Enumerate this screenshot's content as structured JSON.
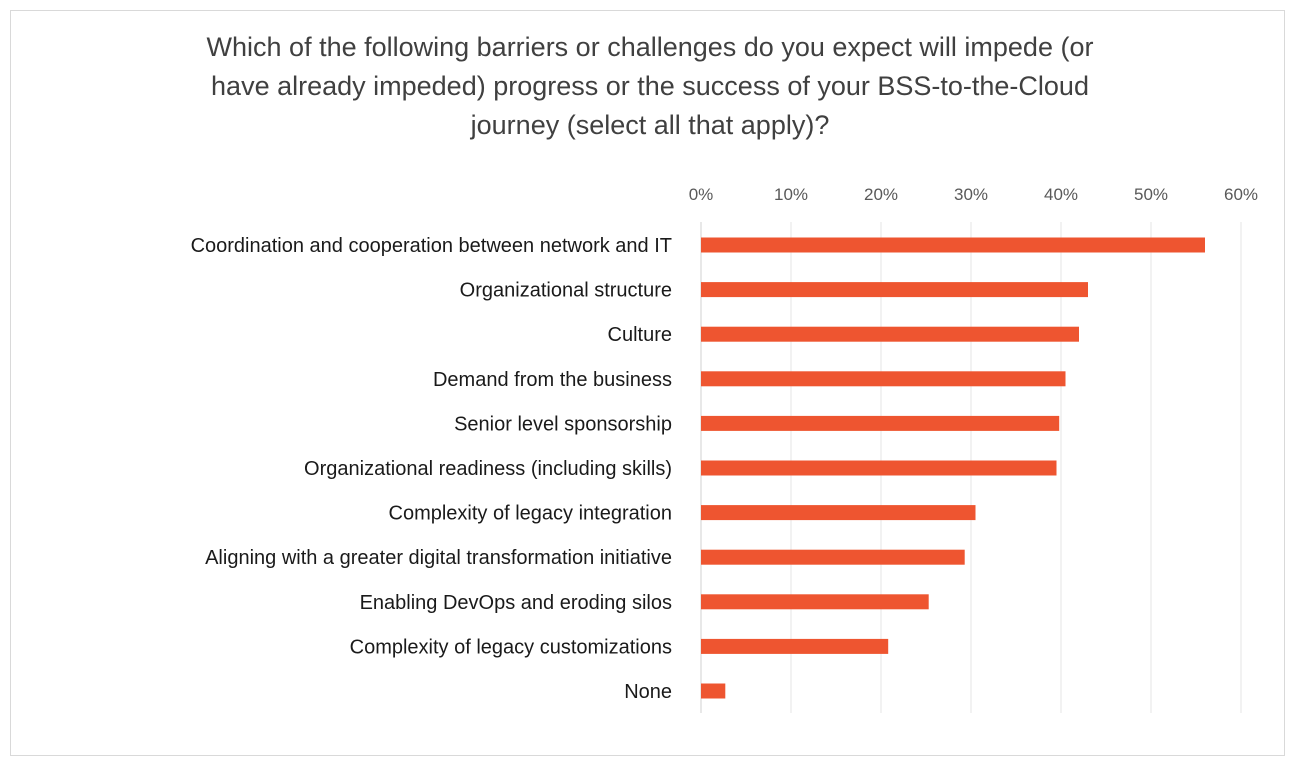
{
  "chart_data": {
    "type": "bar",
    "orientation": "horizontal",
    "title": "Which of the following barriers or challenges do you expect will impede (or have already impeded) progress or the success of your BSS-to-the-Cloud journey (select all that apply)?",
    "title_lines": [
      "Which of the following barriers or challenges do you expect will impede (or",
      "have already impeded) progress or the success of your BSS-to-the-Cloud",
      "journey (select all that apply)?"
    ],
    "categories": [
      "Coordination and cooperation between network and IT",
      "Organizational structure",
      "Culture",
      "Demand from the business",
      "Senior level sponsorship",
      "Organizational readiness (including skills)",
      "Complexity of legacy integration",
      "Aligning with a greater digital transformation initiative",
      "Enabling DevOps and eroding silos",
      "Complexity of legacy customizations",
      "None"
    ],
    "values": [
      56,
      43,
      42,
      40.5,
      39.8,
      39.5,
      30.5,
      29.3,
      25.3,
      20.8,
      2.7
    ],
    "xlim": [
      0,
      60
    ],
    "x_ticks": [
      0,
      10,
      20,
      30,
      40,
      50,
      60
    ],
    "x_tick_labels": [
      "0%",
      "10%",
      "20%",
      "30%",
      "40%",
      "50%",
      "60%"
    ],
    "x_axis_position": "top",
    "grid": true,
    "bar_color": "#ee5530",
    "grid_color": "#e6e6e6"
  }
}
